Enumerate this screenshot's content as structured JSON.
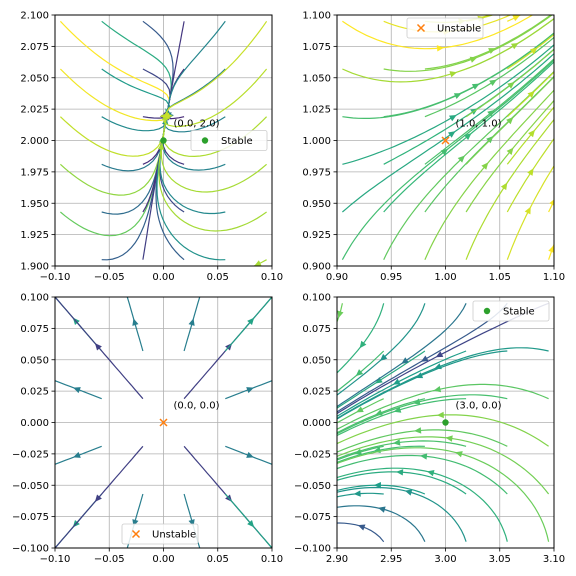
{
  "chart_data": [
    {
      "type": "streamplot",
      "xlim": [
        -0.1,
        0.1
      ],
      "ylim": [
        1.9,
        2.1
      ],
      "xticks": [
        -0.1,
        -0.05,
        0.0,
        0.05,
        0.1
      ],
      "yticks": [
        1.9,
        1.925,
        1.95,
        1.975,
        2.0,
        2.025,
        2.05,
        2.075,
        2.1
      ],
      "xtick_labels": [
        "−0.10",
        "−0.05",
        "0.00",
        "0.05",
        "0.10"
      ],
      "ytick_labels": [
        "1.900",
        "1.925",
        "1.950",
        "1.975",
        "2.000",
        "2.025",
        "2.050",
        "2.075",
        "2.100"
      ],
      "grid": true,
      "equilibrium": {
        "x": 0.0,
        "y": 2.0,
        "stability": "Stable",
        "label": "(0.0, 2.0)",
        "color": "#2ca02c",
        "marker": "dot"
      },
      "legend": {
        "label": "Stable",
        "location": "center-right"
      },
      "field": "stable-node"
    },
    {
      "type": "streamplot",
      "xlim": [
        0.9,
        1.1
      ],
      "ylim": [
        0.9,
        1.1
      ],
      "xticks": [
        0.9,
        0.95,
        1.0,
        1.05,
        1.1
      ],
      "yticks": [
        0.9,
        0.925,
        0.95,
        0.975,
        1.0,
        1.025,
        1.05,
        1.075,
        1.1
      ],
      "xtick_labels": [
        "0.90",
        "0.95",
        "1.00",
        "1.05",
        "1.10"
      ],
      "ytick_labels": [
        "0.900",
        "0.925",
        "0.950",
        "0.975",
        "1.000",
        "1.025",
        "1.050",
        "1.075",
        "1.100"
      ],
      "grid": true,
      "equilibrium": {
        "x": 1.0,
        "y": 1.0,
        "stability": "Unstable",
        "label": "(1.0, 1.0)",
        "color": "#ff7f0e",
        "marker": "x"
      },
      "legend": {
        "label": "Unstable",
        "location": "upper-left"
      },
      "field": "saddle-diagonal"
    },
    {
      "type": "streamplot",
      "xlim": [
        -0.1,
        0.1
      ],
      "ylim": [
        -0.1,
        0.1
      ],
      "xticks": [
        -0.1,
        -0.05,
        0.0,
        0.05,
        0.1
      ],
      "yticks": [
        -0.1,
        -0.075,
        -0.05,
        -0.025,
        0.0,
        0.025,
        0.05,
        0.075,
        0.1
      ],
      "xtick_labels": [
        "−0.10",
        "−0.05",
        "0.00",
        "0.05",
        "0.10"
      ],
      "ytick_labels": [
        "−0.100",
        "−0.075",
        "−0.050",
        "−0.025",
        "0.000",
        "0.025",
        "0.050",
        "0.075",
        "0.100"
      ],
      "grid": true,
      "equilibrium": {
        "x": 0.0,
        "y": 0.0,
        "stability": "Unstable",
        "label": "(0.0, 0.0)",
        "color": "#ff7f0e",
        "marker": "x"
      },
      "legend": {
        "label": "Unstable",
        "location": "lower-center"
      },
      "field": "unstable-node"
    },
    {
      "type": "streamplot",
      "xlim": [
        2.9,
        3.1
      ],
      "ylim": [
        -0.1,
        0.1
      ],
      "xticks": [
        2.9,
        2.95,
        3.0,
        3.05,
        3.1
      ],
      "yticks": [
        -0.1,
        -0.075,
        -0.05,
        -0.025,
        0.0,
        0.025,
        0.05,
        0.075,
        0.1
      ],
      "xtick_labels": [
        "2.90",
        "2.95",
        "3.00",
        "3.05",
        "3.10"
      ],
      "ytick_labels": [
        "−0.100",
        "−0.075",
        "−0.050",
        "−0.025",
        "0.000",
        "0.025",
        "0.050",
        "0.075",
        "0.100"
      ],
      "grid": true,
      "equilibrium": {
        "x": 3.0,
        "y": 0.0,
        "stability": "Stable",
        "label": "(3.0, 0.0)",
        "color": "#2ca02c",
        "marker": "dot"
      },
      "legend": {
        "label": "Stable",
        "location": "upper-right"
      },
      "field": "flow-left"
    }
  ]
}
